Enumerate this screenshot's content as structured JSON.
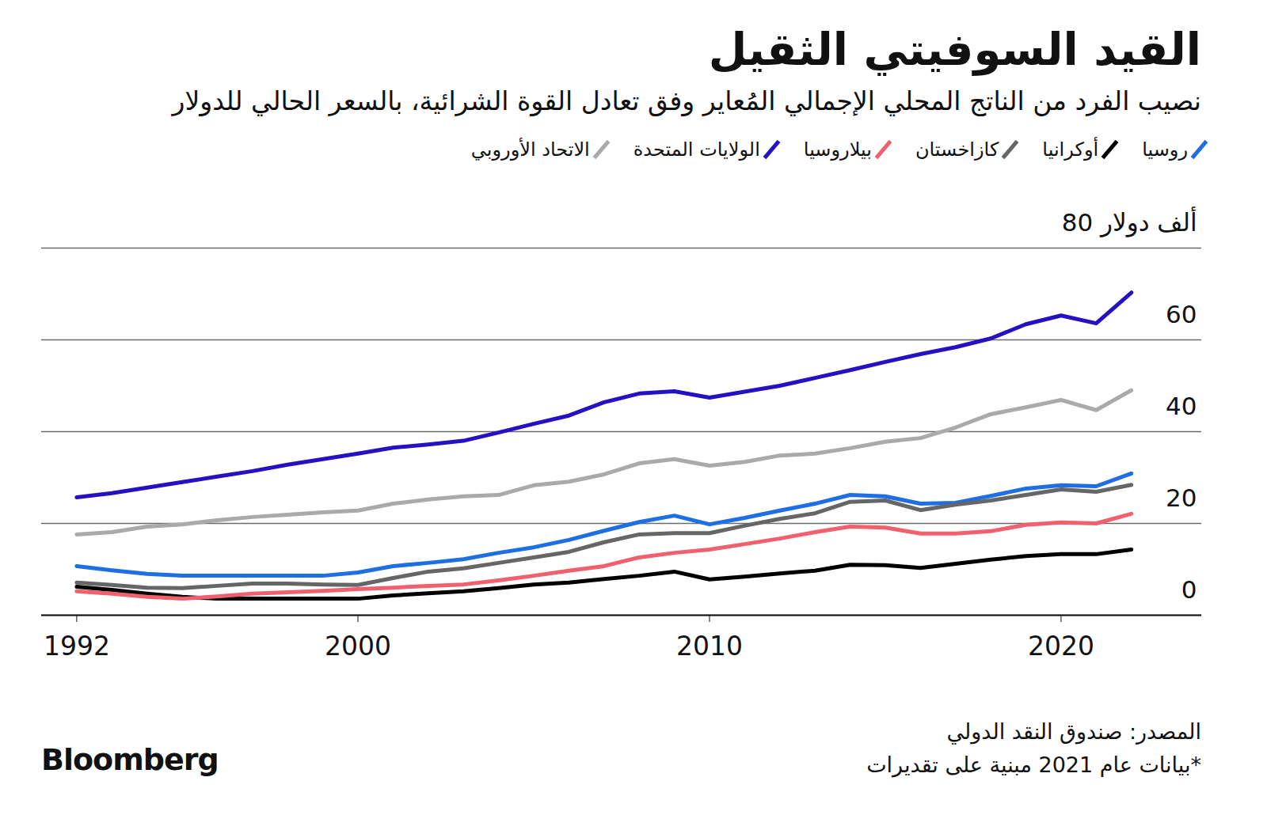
{
  "chart_data": {
    "type": "line",
    "title": "القيد السوفيتي الثقيل",
    "subtitle": "نصيب الفرد من الناتج المحلي الإجمالي المُعاير وفق تعادل القوة الشرائية، بالسعر الحالي للدولار",
    "source": "المصدر: صندوق النقد الدولي",
    "note": "*بيانات عام 2021 مبنية على تقديرات",
    "logo": "Bloomberg",
    "legend": "top",
    "grid": true,
    "x": [
      1992,
      1993,
      1994,
      1995,
      1996,
      1997,
      1998,
      1999,
      2000,
      2001,
      2002,
      2003,
      2004,
      2005,
      2006,
      2007,
      2008,
      2009,
      2010,
      2011,
      2012,
      2013,
      2014,
      2015,
      2016,
      2017,
      2018,
      2019,
      2020,
      2021,
      2022
    ],
    "xlim": [
      1991,
      2024
    ],
    "xticks": [
      1992,
      2000,
      2010,
      2020
    ],
    "ylim": [
      0,
      80
    ],
    "yticks": [
      0,
      20,
      40,
      60,
      {
        "value": 80,
        "label": "80 ألف دولار"
      }
    ],
    "series": [
      {
        "name": "روسيا",
        "color": "#1d6fe3",
        "values": [
          10.7,
          9.8,
          9.0,
          8.6,
          8.6,
          8.6,
          8.6,
          8.6,
          9.3,
          10.7,
          11.4,
          12.2,
          13.6,
          14.8,
          16.4,
          18.4,
          20.3,
          21.7,
          19.8,
          21.2,
          22.8,
          24.3,
          26.2,
          25.9,
          24.3,
          24.5,
          26.0,
          27.6,
          28.3,
          28.1,
          30.9
        ]
      },
      {
        "name": "أوكرانيا",
        "color": "#000000",
        "values": [
          6.2,
          5.5,
          4.7,
          4.0,
          3.6,
          3.6,
          3.6,
          3.6,
          3.6,
          4.3,
          4.8,
          5.2,
          5.9,
          6.7,
          7.1,
          7.9,
          8.6,
          9.5,
          7.8,
          8.4,
          9.1,
          9.7,
          11.0,
          10.9,
          10.3,
          11.2,
          12.1,
          12.9,
          13.3,
          13.3,
          14.3
        ]
      },
      {
        "name": "كازاخستان",
        "color": "#666666",
        "values": [
          7.1,
          6.6,
          6.0,
          5.9,
          6.4,
          6.9,
          6.9,
          6.7,
          6.6,
          8.1,
          9.5,
          10.2,
          11.4,
          12.6,
          13.8,
          15.9,
          17.6,
          17.9,
          17.9,
          19.5,
          21.0,
          22.2,
          24.7,
          25.0,
          22.9,
          24.1,
          25.0,
          26.2,
          27.4,
          26.9,
          28.4
        ]
      },
      {
        "name": "بيلاروسيا",
        "color": "#f0606e",
        "values": [
          5.2,
          4.7,
          4.0,
          3.6,
          4.1,
          4.7,
          5.0,
          5.3,
          5.7,
          6.0,
          6.4,
          6.7,
          7.6,
          8.6,
          9.7,
          10.7,
          12.6,
          13.6,
          14.3,
          15.5,
          16.7,
          18.1,
          19.3,
          19.1,
          17.8,
          17.8,
          18.3,
          19.7,
          20.2,
          20.0,
          22.1
        ]
      },
      {
        "name": "الولايات المتحدة",
        "color": "#2510c4",
        "values": [
          25.7,
          26.6,
          27.8,
          29.0,
          30.2,
          31.4,
          32.8,
          34.0,
          35.2,
          36.5,
          37.2,
          38.0,
          39.8,
          41.7,
          43.5,
          46.4,
          48.3,
          48.8,
          47.4,
          48.7,
          50.0,
          51.7,
          53.4,
          55.2,
          56.9,
          58.4,
          60.3,
          63.4,
          65.3,
          63.6,
          70.3
        ]
      },
      {
        "name": "الاتحاد الأوروبي",
        "color": "#aaaaaa",
        "values": [
          17.6,
          18.1,
          19.3,
          19.8,
          20.7,
          21.4,
          21.9,
          22.4,
          22.8,
          24.3,
          25.2,
          25.9,
          26.2,
          28.3,
          29.1,
          30.7,
          33.1,
          34.0,
          32.6,
          33.4,
          34.8,
          35.2,
          36.4,
          37.8,
          38.6,
          40.9,
          43.8,
          45.3,
          46.9,
          44.7,
          49.0
        ]
      }
    ]
  }
}
